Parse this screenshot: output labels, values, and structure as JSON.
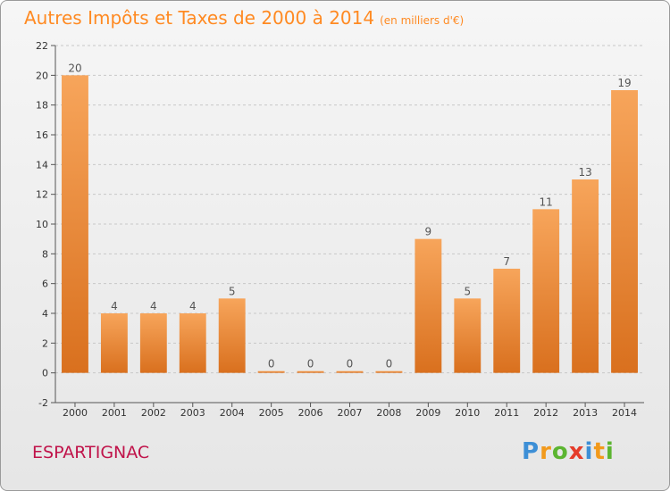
{
  "title": "Autres Impôts et Taxes de 2000 à 2014",
  "title_unit": "(en milliers d'€)",
  "location": "ESPARTIGNAC",
  "logo_letters": [
    "P",
    "r",
    "o",
    "x",
    "i",
    "t",
    "i"
  ],
  "colors": {
    "title": "#ff8a22",
    "location": "#c0134a",
    "bar_top": "#f7a55b",
    "bar_bottom": "#d9701e",
    "logo": [
      "#3d8fd6",
      "#f29a1c",
      "#5cb531",
      "#e53c2a",
      "#3d8fd6",
      "#f29a1c",
      "#5cb531"
    ]
  },
  "chart_data": {
    "type": "bar",
    "categories": [
      "2000",
      "2001",
      "2002",
      "2003",
      "2004",
      "2005",
      "2006",
      "2007",
      "2008",
      "2009",
      "2010",
      "2011",
      "2012",
      "2013",
      "2014"
    ],
    "values": [
      20,
      4,
      4,
      4,
      5,
      0,
      0,
      0,
      0,
      9,
      5,
      7,
      11,
      13,
      19
    ],
    "value_labels": [
      "20",
      "4",
      "4",
      "4",
      "5",
      "0",
      "0",
      "0",
      "0",
      "9",
      "5",
      "7",
      "11",
      "13",
      "19"
    ],
    "title": "Autres Impôts et Taxes de 2000 à 2014",
    "xlabel": "",
    "ylabel": "",
    "ylim": [
      -2,
      22
    ],
    "yticks": [
      -2,
      0,
      2,
      4,
      6,
      8,
      10,
      12,
      14,
      16,
      18,
      20,
      22
    ],
    "ytick_labels": [
      "-2",
      "0",
      "2",
      "4",
      "6",
      "8",
      "10",
      "12",
      "14",
      "16",
      "18",
      "20",
      "22"
    ],
    "grid": "horizontal dashed"
  }
}
